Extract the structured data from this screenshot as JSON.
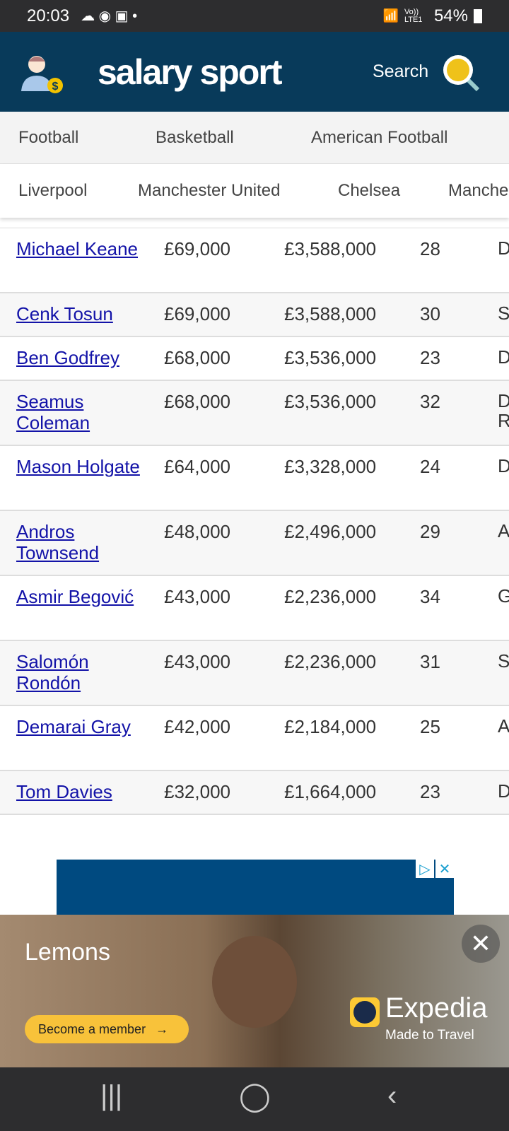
{
  "status": {
    "time": "20:03",
    "network": "Vo)) LTE1",
    "battery": "54%"
  },
  "header": {
    "brand": "salary sport",
    "search_label": "Search"
  },
  "nav_sports": [
    "Football",
    "Basketball",
    "American Football"
  ],
  "nav_teams": [
    "Liverpool",
    "Manchester United",
    "Chelsea",
    "Manche"
  ],
  "table": {
    "rows": [
      {
        "name": "Michael Keane",
        "weekly": "£69,000",
        "yearly": "£3,588,000",
        "age": "28",
        "position": "D"
      },
      {
        "name": "Cenk Tosun",
        "weekly": "£69,000",
        "yearly": "£3,588,000",
        "age": "30",
        "position": "S"
      },
      {
        "name": "Ben Godfrey",
        "weekly": "£68,000",
        "yearly": "£3,536,000",
        "age": "23",
        "position": "D"
      },
      {
        "name": "Seamus Coleman",
        "weekly": "£68,000",
        "yearly": "£3,536,000",
        "age": "32",
        "position": "D\nR"
      },
      {
        "name": "Mason Holgate",
        "weekly": "£64,000",
        "yearly": "£3,328,000",
        "age": "24",
        "position": "D"
      },
      {
        "name": "Andros Townsend",
        "weekly": "£48,000",
        "yearly": "£2,496,000",
        "age": "29",
        "position": "A"
      },
      {
        "name": "Asmir Begović",
        "weekly": "£43,000",
        "yearly": "£2,236,000",
        "age": "34",
        "position": "G"
      },
      {
        "name": "Salomón Rondón",
        "weekly": "£43,000",
        "yearly": "£2,236,000",
        "age": "31",
        "position": "S"
      },
      {
        "name": "Demarai Gray",
        "weekly": "£42,000",
        "yearly": "£2,184,000",
        "age": "25",
        "position": "A"
      },
      {
        "name": "Tom Davies",
        "weekly": "£32,000",
        "yearly": "£1,664,000",
        "age": "23",
        "position": "D"
      }
    ]
  },
  "ad": {
    "title": "Lemons",
    "cta": "Become a member",
    "brand": "Expedia",
    "tagline": "Made to Travel"
  },
  "colors": {
    "header": "#083a5a",
    "link": "#1313a8",
    "cta": "#f8c23a"
  }
}
